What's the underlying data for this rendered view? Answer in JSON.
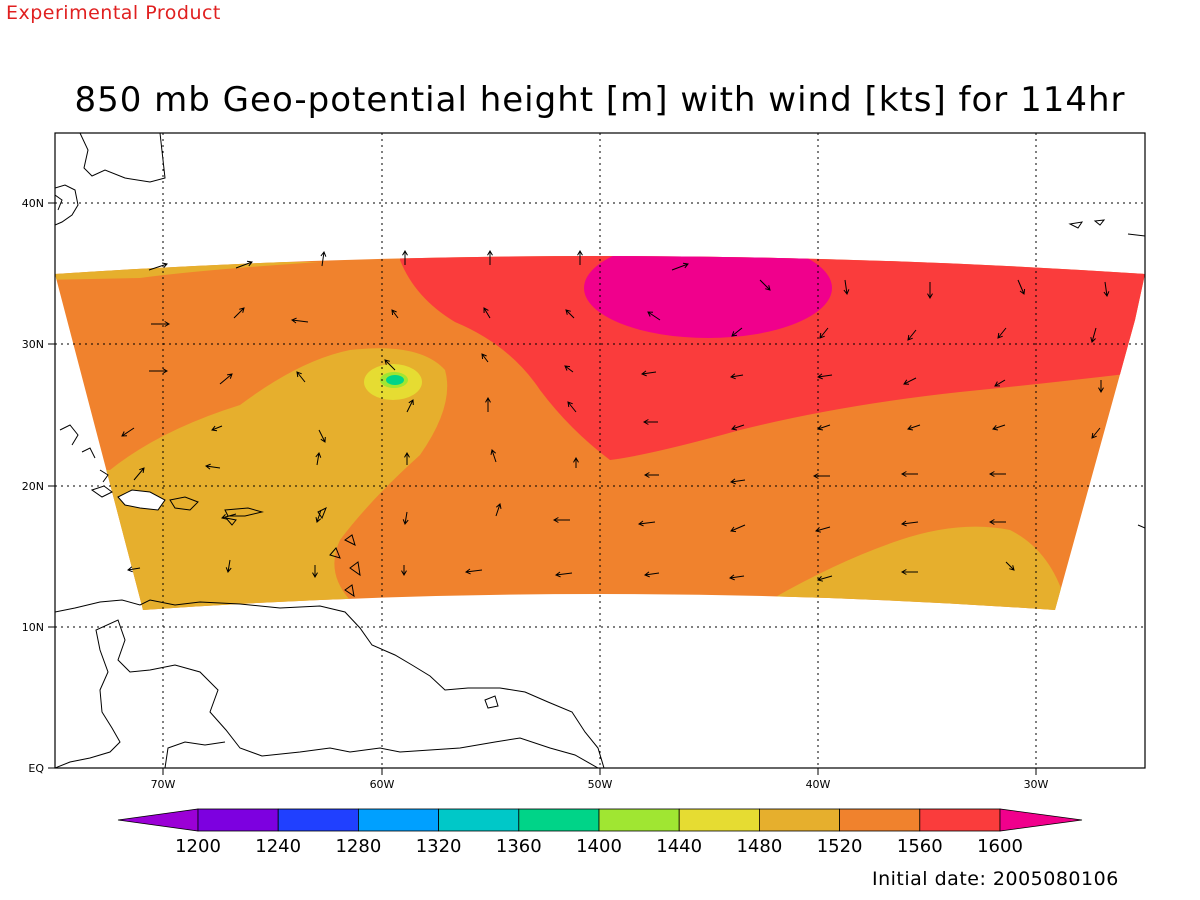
{
  "header": {
    "experimental_label": "Experimental Product",
    "title": "850 mb Geo-potential height [m] with wind [kts] for 114hr",
    "initial_date": "Initial date: 2005080106"
  },
  "map": {
    "lon_labels": [
      "70W",
      "60W",
      "50W",
      "40W",
      "30W"
    ],
    "lat_labels": [
      "EQ",
      "10N",
      "20N",
      "30N",
      "40N"
    ],
    "field": "850 mb geopotential height",
    "units": "m",
    "wind_units": "kts",
    "forecast_hour": "114hr"
  },
  "colorbar": {
    "labels": [
      "1200",
      "1240",
      "1280",
      "1320",
      "1360",
      "1400",
      "1440",
      "1480",
      "1520",
      "1560",
      "1600"
    ],
    "colors": [
      "#9b00d6",
      "#7d00e0",
      "#2040ff",
      "#00a0ff",
      "#00c8c8",
      "#00d488",
      "#a0e632",
      "#e6dc32",
      "#e6af2d",
      "#f0822d",
      "#fa3c3c",
      "#f0008c"
    ]
  },
  "colors": {
    "c1480": "#e6dc32",
    "c1520": "#e6af2d",
    "c1560": "#f0822d",
    "c1600": "#fa3c3c",
    "c1640": "#f0008c",
    "c1400": "#00d488",
    "c1360": "#00c8c8",
    "c1440": "#a0e632"
  }
}
